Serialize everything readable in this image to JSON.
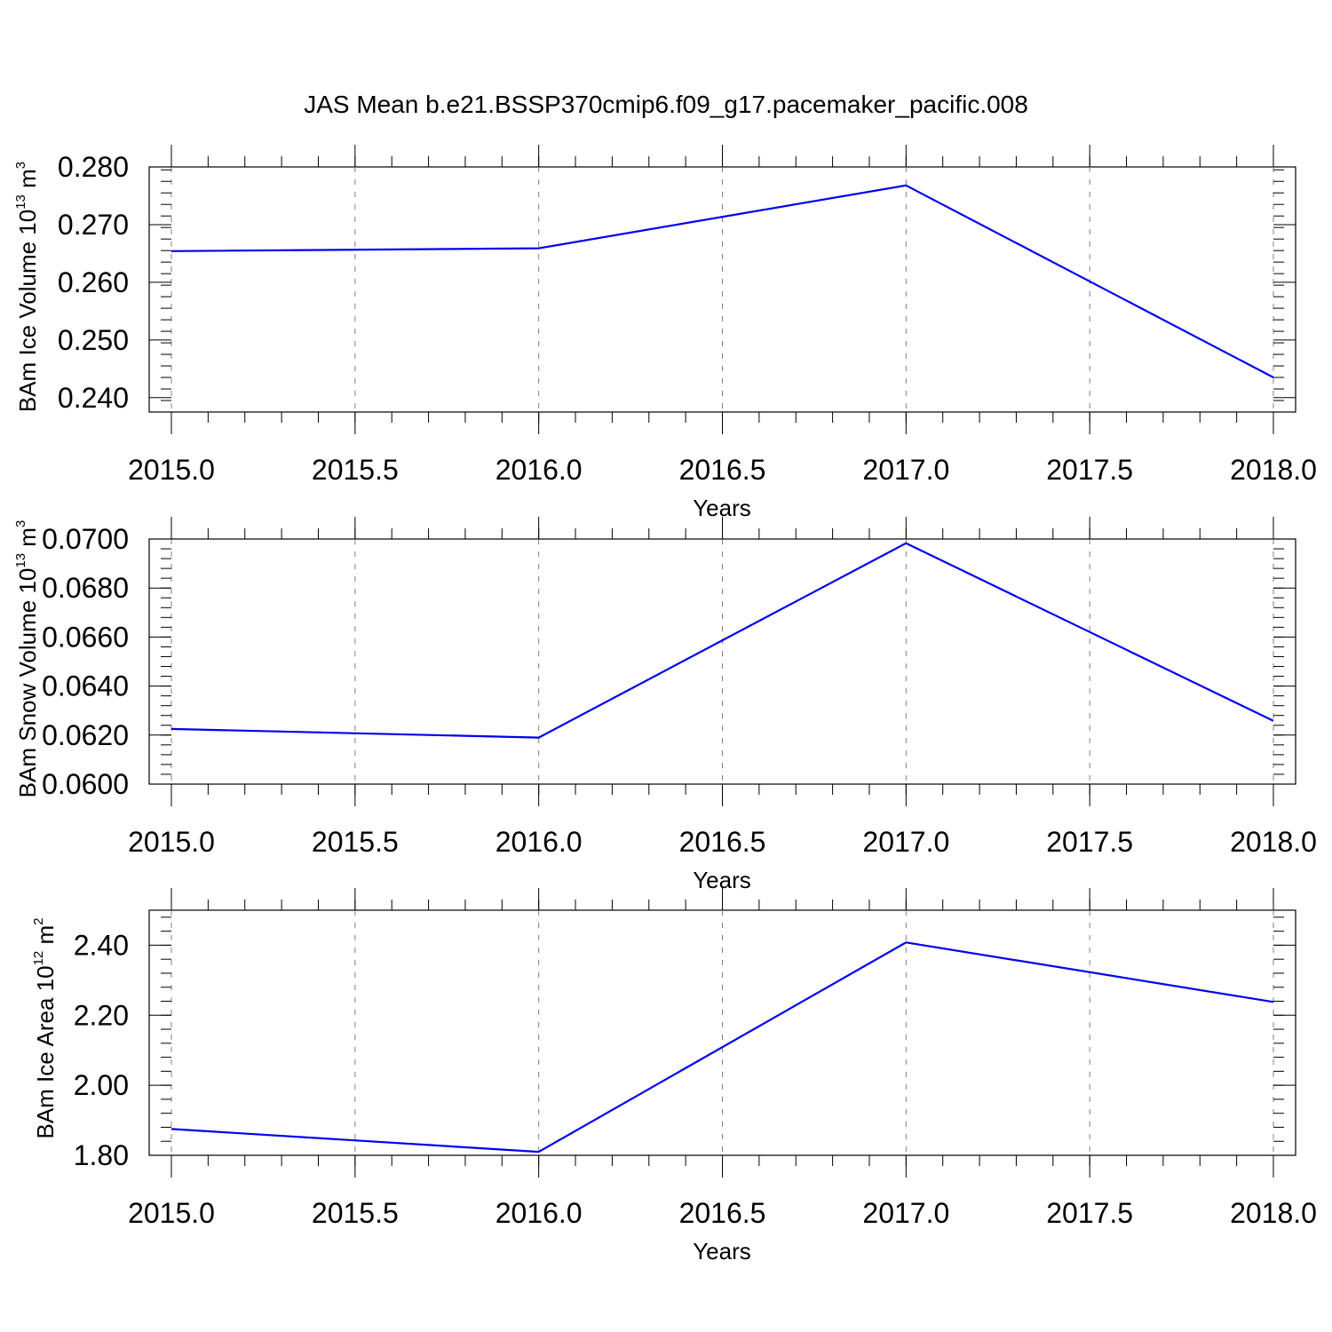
{
  "title": "JAS Mean b.e21.BSSP370cmip6.f09_g17.pacemaker_pacific.008",
  "colors": {
    "series": "#0000ee",
    "grid": "#808080",
    "axis": "#000000"
  },
  "chart_data": [
    {
      "type": "line",
      "xlabel": "Years",
      "ylabel": {
        "text": "BAm Ice Volume 10",
        "exp1": "13",
        "mid": " m",
        "exp2": "3"
      },
      "xlim": [
        2015.0,
        2018.0
      ],
      "ylim": [
        0.2375,
        0.28
      ],
      "xticks": [
        2015.0,
        2015.5,
        2016.0,
        2016.5,
        2017.0,
        2017.5,
        2018.0
      ],
      "xtick_labels": [
        "2015.0",
        "2015.5",
        "2016.0",
        "2016.5",
        "2017.0",
        "2017.5",
        "2018.0"
      ],
      "yticks": [
        0.24,
        0.25,
        0.26,
        0.27,
        0.28
      ],
      "ytick_labels": [
        "0.240",
        "0.250",
        "0.260",
        "0.270",
        "0.280"
      ],
      "grid": "x-dashed",
      "x": [
        2015,
        2016,
        2017,
        2018
      ],
      "y": [
        0.2654,
        0.2659,
        0.2768,
        0.2435
      ]
    },
    {
      "type": "line",
      "xlabel": "Years",
      "ylabel": {
        "text": "BAm Snow Volume 10",
        "exp1": "13",
        "mid": " m",
        "exp2": "3"
      },
      "xlim": [
        2015.0,
        2018.0
      ],
      "ylim": [
        0.06,
        0.07
      ],
      "xticks": [
        2015.0,
        2015.5,
        2016.0,
        2016.5,
        2017.0,
        2017.5,
        2018.0
      ],
      "xtick_labels": [
        "2015.0",
        "2015.5",
        "2016.0",
        "2016.5",
        "2017.0",
        "2017.5",
        "2018.0"
      ],
      "yticks": [
        0.06,
        0.062,
        0.064,
        0.066,
        0.068,
        0.07
      ],
      "ytick_labels": [
        "0.0600",
        "0.0620",
        "0.0640",
        "0.0660",
        "0.0680",
        "0.0700"
      ],
      "grid": "x-dashed",
      "x": [
        2015,
        2016,
        2017,
        2018
      ],
      "y": [
        0.06225,
        0.0619,
        0.06983,
        0.06258
      ]
    },
    {
      "type": "line",
      "xlabel": "Years",
      "ylabel": {
        "text": "BAm Ice Area 10",
        "exp1": "12",
        "mid": " m",
        "exp2": "2"
      },
      "xlim": [
        2015.0,
        2018.0
      ],
      "ylim": [
        1.8,
        2.5
      ],
      "xticks": [
        2015.0,
        2015.5,
        2016.0,
        2016.5,
        2017.0,
        2017.5,
        2018.0
      ],
      "xtick_labels": [
        "2015.0",
        "2015.5",
        "2016.0",
        "2016.5",
        "2017.0",
        "2017.5",
        "2018.0"
      ],
      "yticks": [
        1.8,
        2.0,
        2.2,
        2.4
      ],
      "ytick_labels": [
        "1.80",
        "2.00",
        "2.20",
        "2.40"
      ],
      "grid": "x-dashed",
      "x": [
        2015,
        2016,
        2017,
        2018
      ],
      "y": [
        1.875,
        1.81,
        2.408,
        2.238
      ]
    }
  ]
}
